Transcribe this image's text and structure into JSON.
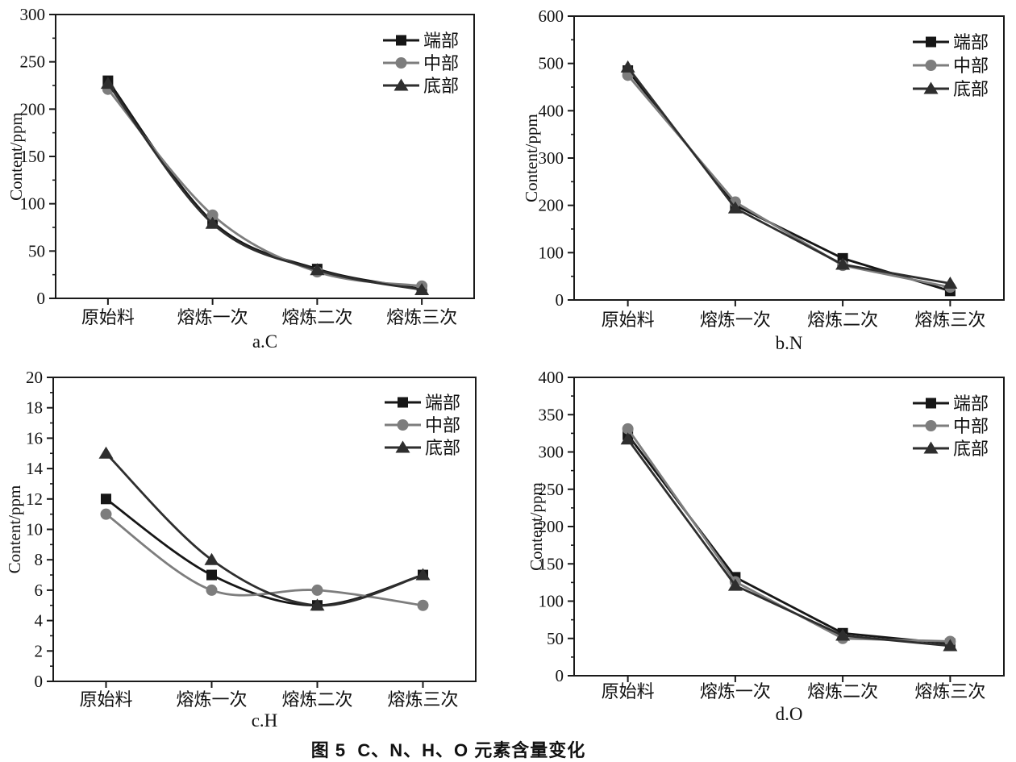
{
  "figure": {
    "caption": "图 5  C、N、H、O 元素含量变化"
  },
  "axis": {
    "color": "#1a1a1a",
    "text_color": "#111111"
  },
  "chart_data": [
    {
      "type": "line",
      "panel_label": "a.C",
      "element": "C",
      "ylabel": "Content/ppm",
      "categories": [
        "原始料",
        "熔炼一次",
        "熔炼二次",
        "熔炼三次"
      ],
      "ylim": [
        0,
        300
      ],
      "ytick_step": 50,
      "grid": false,
      "legend_position": "top-right",
      "smooth": true,
      "series": [
        {
          "name": "端部",
          "marker": "square",
          "color": "#161616",
          "values": [
            230,
            81,
            31,
            10
          ]
        },
        {
          "name": "中部",
          "marker": "circle",
          "color": "#7d7d7d",
          "values": [
            221,
            88,
            28,
            13
          ]
        },
        {
          "name": "底部",
          "marker": "triangle",
          "color": "#2e2e2e",
          "values": [
            227,
            79,
            30,
            9
          ]
        }
      ]
    },
    {
      "type": "line",
      "panel_label": "b.N",
      "element": "N",
      "ylabel": "Content/ppm",
      "categories": [
        "原始料",
        "熔炼一次",
        "熔炼二次",
        "熔炼三次"
      ],
      "ylim": [
        0,
        600
      ],
      "ytick_step": 100,
      "grid": false,
      "legend_position": "top-right",
      "smooth": false,
      "series": [
        {
          "name": "端部",
          "marker": "square",
          "color": "#161616",
          "values": [
            485,
            200,
            88,
            19
          ]
        },
        {
          "name": "中部",
          "marker": "circle",
          "color": "#7d7d7d",
          "values": [
            475,
            207,
            73,
            27
          ]
        },
        {
          "name": "底部",
          "marker": "triangle",
          "color": "#2e2e2e",
          "values": [
            492,
            194,
            75,
            35
          ]
        }
      ]
    },
    {
      "type": "line",
      "panel_label": "c.H",
      "element": "H",
      "ylabel": "Content/ppm",
      "categories": [
        "原始料",
        "熔炼一次",
        "熔炼二次",
        "熔炼三次"
      ],
      "ylim": [
        0,
        20
      ],
      "ytick_step": 2,
      "grid": false,
      "legend_position": "top-right",
      "smooth": true,
      "series": [
        {
          "name": "端部",
          "marker": "square",
          "color": "#161616",
          "values": [
            12,
            7,
            5,
            7
          ]
        },
        {
          "name": "中部",
          "marker": "circle",
          "color": "#7d7d7d",
          "values": [
            11,
            6,
            6,
            5
          ]
        },
        {
          "name": "底部",
          "marker": "triangle",
          "color": "#2e2e2e",
          "values": [
            15,
            8,
            5,
            7
          ]
        }
      ]
    },
    {
      "type": "line",
      "panel_label": "d.O",
      "element": "O",
      "ylabel": "Content/ppm",
      "categories": [
        "原始料",
        "熔炼一次",
        "熔炼二次",
        "熔炼三次"
      ],
      "ylim": [
        0,
        400
      ],
      "ytick_step": 50,
      "grid": false,
      "legend_position": "top-right",
      "smooth": false,
      "series": [
        {
          "name": "端部",
          "marker": "square",
          "color": "#161616",
          "values": [
            323,
            132,
            57,
            43
          ]
        },
        {
          "name": "中部",
          "marker": "circle",
          "color": "#7d7d7d",
          "values": [
            331,
            126,
            50,
            46
          ]
        },
        {
          "name": "底部",
          "marker": "triangle",
          "color": "#2e2e2e",
          "values": [
            317,
            121,
            54,
            40
          ]
        }
      ]
    }
  ]
}
